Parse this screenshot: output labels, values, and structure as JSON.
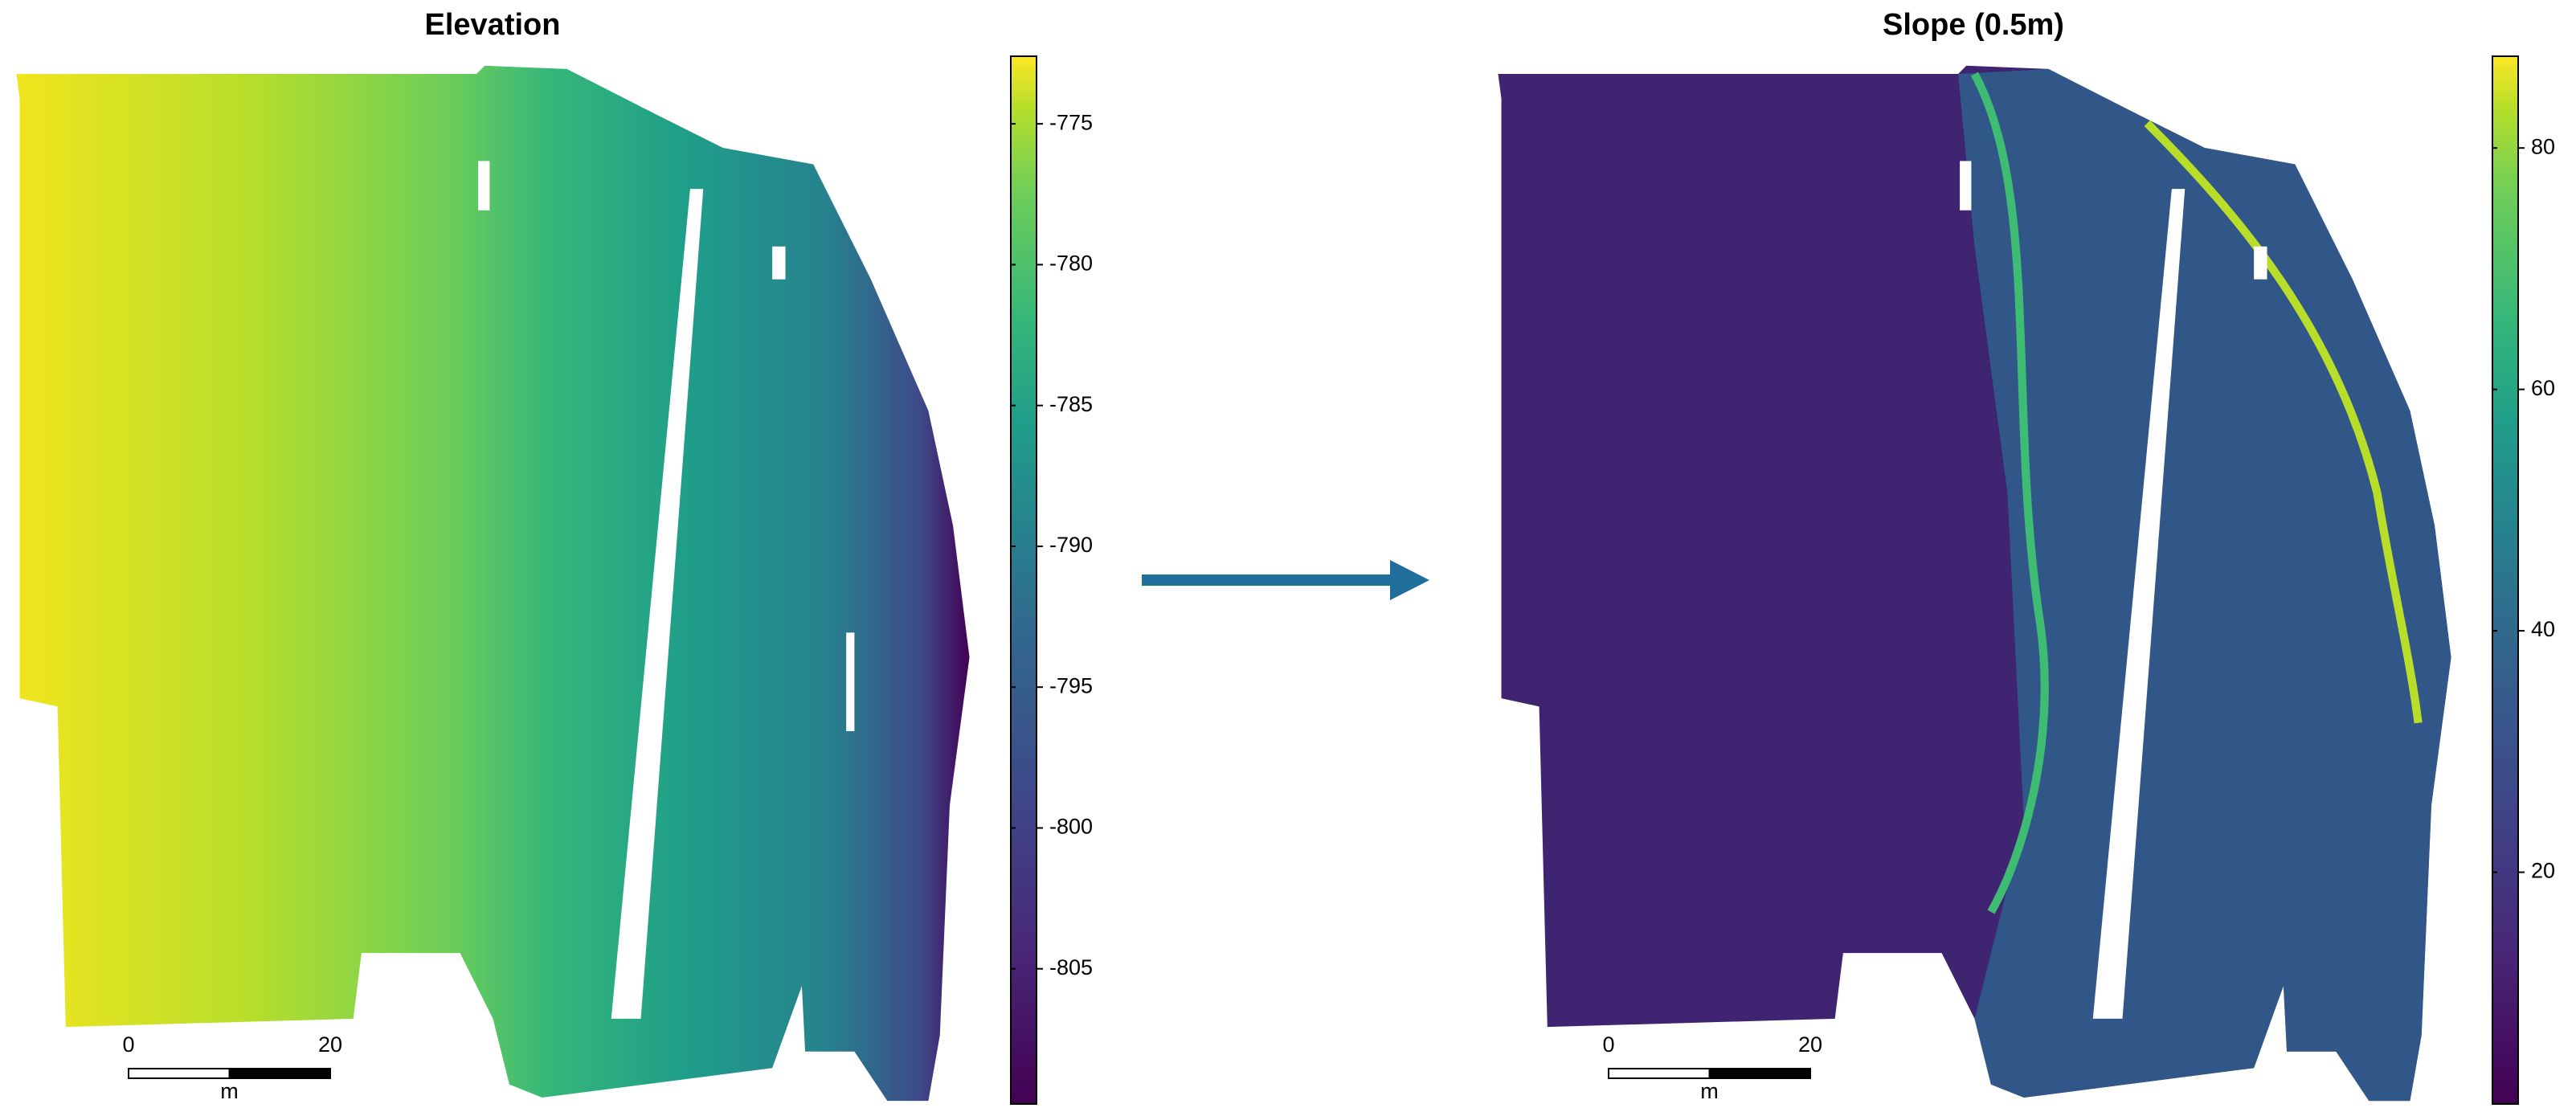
{
  "panels": [
    {
      "title": "Elevation",
      "colorbar": {
        "clim": [
          -809.8,
          -772.6
        ],
        "ticks": [
          -775,
          -780,
          -785,
          -790,
          -795,
          -800,
          -805
        ]
      },
      "scale_bar": {
        "ticks": [
          0,
          20
        ],
        "unit": "m"
      }
    },
    {
      "title": "Slope (0.5m)",
      "colorbar": {
        "clim": [
          0.8,
          87.6
        ],
        "ticks": [
          20,
          40,
          60,
          80
        ]
      },
      "scale_bar": {
        "ticks": [
          0,
          20
        ],
        "unit": "m"
      }
    }
  ]
}
